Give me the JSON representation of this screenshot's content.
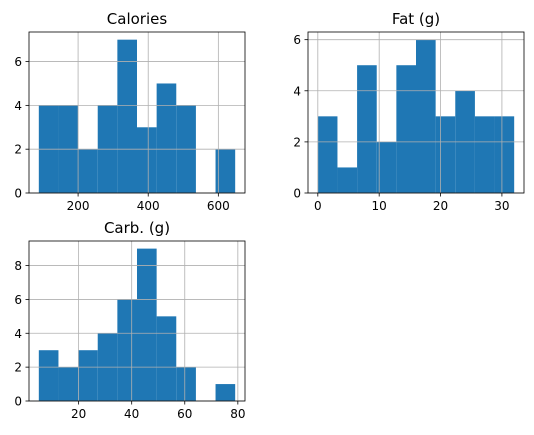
{
  "chart_data": [
    {
      "type": "bar",
      "title": "Calories",
      "bins": [
        [
          88,
          144,
          4
        ],
        [
          144,
          200,
          4
        ],
        [
          200,
          256,
          2
        ],
        [
          256,
          312,
          4
        ],
        [
          312,
          368,
          7
        ],
        [
          368,
          424,
          3
        ],
        [
          424,
          480,
          5
        ],
        [
          480,
          536,
          4
        ],
        [
          536,
          592,
          0
        ],
        [
          592,
          648,
          2
        ]
      ],
      "xlim": [
        60,
        676
      ],
      "ylim": [
        0,
        7.35
      ],
      "xticks": [
        200,
        400,
        600
      ],
      "yticks": [
        0,
        2,
        4,
        6
      ],
      "xtick_labels": [
        "200",
        "400",
        "600"
      ],
      "ytick_labels": [
        "0",
        "2",
        "4",
        "6"
      ],
      "grid": true,
      "color": "#1f77b4"
    },
    {
      "type": "bar",
      "title": "Fat (g)",
      "bins": [
        [
          0,
          3.2,
          3
        ],
        [
          3.2,
          6.4,
          1
        ],
        [
          6.4,
          9.6,
          5
        ],
        [
          9.6,
          12.8,
          2
        ],
        [
          12.8,
          16,
          5
        ],
        [
          16,
          19.2,
          6
        ],
        [
          19.2,
          22.4,
          3
        ],
        [
          22.4,
          25.6,
          4
        ],
        [
          25.6,
          28.8,
          3
        ],
        [
          28.8,
          32,
          3
        ]
      ],
      "xlim": [
        -1.6,
        33.6
      ],
      "ylim": [
        0,
        6.3
      ],
      "xticks": [
        0,
        10,
        20,
        30
      ],
      "yticks": [
        0,
        2,
        4,
        6
      ],
      "xtick_labels": [
        "0",
        "10",
        "20",
        "30"
      ],
      "ytick_labels": [
        "0",
        "2",
        "4",
        "6"
      ],
      "grid": true,
      "color": "#1f77b4"
    },
    {
      "type": "bar",
      "title": "Carb. (g)",
      "bins": [
        [
          5,
          12.4,
          3
        ],
        [
          12.4,
          19.8,
          2
        ],
        [
          19.8,
          27.2,
          3
        ],
        [
          27.2,
          34.6,
          4
        ],
        [
          34.6,
          42,
          6
        ],
        [
          42,
          49.4,
          9
        ],
        [
          49.4,
          56.8,
          5
        ],
        [
          56.8,
          64.2,
          2
        ],
        [
          64.2,
          71.6,
          0
        ],
        [
          71.6,
          79,
          1
        ]
      ],
      "xlim": [
        1.3,
        82.7
      ],
      "ylim": [
        0,
        9.45
      ],
      "xticks": [
        20,
        40,
        60,
        80
      ],
      "yticks": [
        0,
        2,
        4,
        6,
        8
      ],
      "xtick_labels": [
        "20",
        "40",
        "60",
        "80"
      ],
      "ytick_labels": [
        "0",
        "2",
        "4",
        "6",
        "8"
      ],
      "grid": true,
      "color": "#1f77b4"
    }
  ]
}
